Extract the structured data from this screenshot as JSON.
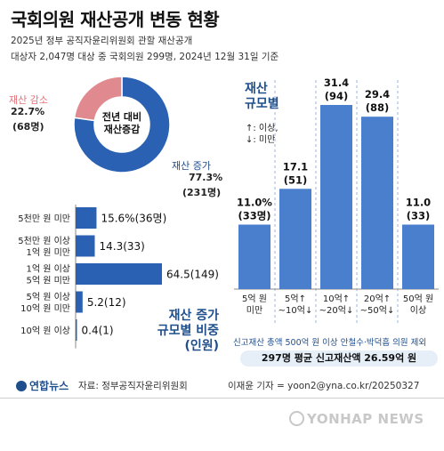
{
  "title": "국회의원 재산공개 변동 현황",
  "subtitle_1": "2025년 정부 공직자윤리위원회 관할 재산공개",
  "subtitle_2": "대상자 2,047명 대상 중 국회의원 299명, 2024년 12월 31일 기준",
  "colors": {
    "blue": "#3b6fbe",
    "navy": "#1f4e8c",
    "pink": "#e08a8f",
    "bar_light": "#4a7fcd"
  },
  "chart_data": [
    {
      "type": "pie",
      "center_label": [
        "전년 대비",
        "재산증감"
      ],
      "slices": [
        {
          "label": "재산 증가",
          "pct_text": "77.3%",
          "count_text": "(231명)",
          "value": 77.3,
          "color": "#2b61b3"
        },
        {
          "label": "재산 감소",
          "pct_text": "22.7%",
          "count_text": "(68명)",
          "value": 22.7,
          "color": "#e08a8f"
        }
      ]
    },
    {
      "type": "bar",
      "orientation": "horizontal",
      "title": [
        "재산 증가",
        "규모별 비중",
        "(인원)"
      ],
      "categories": [
        [
          "5천만 원 미만"
        ],
        [
          "5천만 원 이상",
          "1억 원 미만"
        ],
        [
          "1억 원 이상",
          "5억 원 미만"
        ],
        [
          "5억 원 이상",
          "10억 원 미만"
        ],
        [
          "10억 원 이상"
        ]
      ],
      "values": [
        15.6,
        14.3,
        64.5,
        5.2,
        0.4
      ],
      "value_labels": [
        "15.6%(36명)",
        "14.3(33)",
        "64.5(149)",
        "5.2(12)",
        "0.4(1)"
      ]
    },
    {
      "type": "bar",
      "orientation": "vertical",
      "title": [
        "재산",
        "규모별"
      ],
      "legend_note": [
        "↑: 이상,",
        "↓: 미만"
      ],
      "categories": [
        [
          "5억 원",
          "미만"
        ],
        [
          "5억↑",
          "~10억↓"
        ],
        [
          "10억↑",
          "~20억↓"
        ],
        [
          "20억↑",
          "~50억↓"
        ],
        [
          "50억 원",
          "이상"
        ]
      ],
      "values": [
        11.0,
        17.1,
        31.4,
        29.4,
        11.0
      ],
      "counts": [
        "(33명)",
        "(51)",
        "(94)",
        "(88)",
        "(33)"
      ],
      "value_labels": [
        "11.0%",
        "17.1",
        "31.4",
        "29.4",
        "11.0"
      ]
    }
  ],
  "note": "신고재산 총액 500억 원 이상 안철수·박덕흠 의원 제외",
  "total_line": "297명 평균 신고재산액 26.59억 원",
  "footer": {
    "logo_text": "연합뉴스",
    "source": "자료: 정부공직자윤리위원회",
    "credit": "이재윤 기자 = yoon2@yna.co.kr/20250327",
    "watermark": "YONHAP NEWS"
  }
}
